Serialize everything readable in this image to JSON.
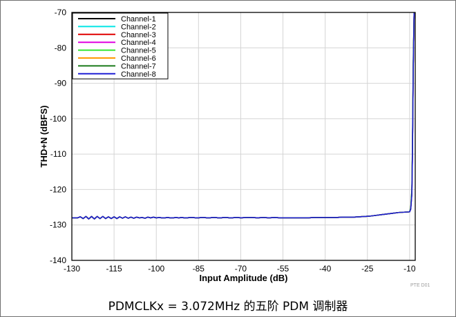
{
  "caption": "PDMCLKx = 3.072MHz 的五阶 PDM 调制器",
  "watermark": "PTE D01",
  "chart_data": {
    "type": "line",
    "xlabel": "Input Amplitude (dB)",
    "ylabel": "THD+N (dBFS)",
    "xlim": [
      -130,
      -8
    ],
    "ylim": [
      -140,
      -70
    ],
    "xticks": [
      -130,
      -115,
      -100,
      -85,
      -70,
      -55,
      -40,
      -25,
      -10
    ],
    "xtick_labels": [
      "-130",
      "-115",
      "-100",
      "-85",
      "-70",
      "-55",
      "-40",
      "-25",
      "-10"
    ],
    "yticks": [
      -140,
      -130,
      -120,
      -110,
      -100,
      -90,
      -80,
      -70
    ],
    "ytick_labels": [
      "-140",
      "-130",
      "-120",
      "-110",
      "-100",
      "-90",
      "-80",
      "-70"
    ],
    "grid": true,
    "legend_position": "top-left",
    "x": [
      -130,
      -128,
      -127,
      -126,
      -125,
      -124,
      -123,
      -122,
      -121,
      -120,
      -119,
      -118,
      -117,
      -116,
      -115,
      -114,
      -113,
      -112,
      -111,
      -110,
      -109,
      -108,
      -107,
      -106,
      -105,
      -104,
      -103,
      -102,
      -101,
      -100,
      -99,
      -98,
      -97,
      -96,
      -95,
      -94,
      -93,
      -92,
      -91,
      -90,
      -89,
      -88,
      -87,
      -86,
      -85,
      -84,
      -83,
      -82,
      -81,
      -80,
      -79,
      -78,
      -77,
      -76,
      -75,
      -74,
      -73,
      -72,
      -71,
      -70,
      -68,
      -66,
      -64,
      -62,
      -60,
      -58,
      -56,
      -54,
      -52,
      -50,
      -48,
      -46,
      -44,
      -42,
      -40,
      -38,
      -36,
      -34,
      -32,
      -30,
      -28,
      -26,
      -24,
      -22,
      -20,
      -18,
      -16,
      -14,
      -12,
      -10,
      -9.6,
      -9.2,
      -9,
      -8.7,
      -8.4
    ],
    "series": [
      {
        "name": "Channel-1",
        "color": "#000000",
        "values": [
          -128,
          -128,
          -127.7,
          -128.2,
          -127.6,
          -128.3,
          -127.6,
          -128.3,
          -127.6,
          -128.2,
          -127.6,
          -128.2,
          -127.7,
          -128.2,
          -127.7,
          -128.2,
          -127.7,
          -128.1,
          -127.7,
          -128.1,
          -127.8,
          -128.1,
          -127.8,
          -128,
          -127.9,
          -128.1,
          -127.8,
          -128,
          -127.8,
          -128,
          -127.9,
          -128,
          -128,
          -127.9,
          -128,
          -128,
          -127.9,
          -128,
          -127.9,
          -128,
          -128,
          -127.9,
          -127.9,
          -128,
          -128,
          -127.9,
          -127.9,
          -128,
          -128,
          -127.9,
          -127.9,
          -128,
          -128,
          -127.9,
          -127.9,
          -128,
          -128,
          -127.9,
          -127.9,
          -128,
          -127.9,
          -127.9,
          -128,
          -127.9,
          -128,
          -127.9,
          -128,
          -128,
          -128,
          -128,
          -128,
          -128,
          -127.9,
          -127.9,
          -127.9,
          -127.9,
          -127.9,
          -127.8,
          -127.8,
          -127.8,
          -127.7,
          -127.6,
          -127.5,
          -127.3,
          -127.1,
          -126.9,
          -126.7,
          -126.5,
          -126.4,
          -126.3,
          -125.5,
          -121,
          -110,
          -85,
          -70
        ]
      },
      {
        "name": "Channel-2",
        "color": "#00e5e5",
        "values": [
          -128,
          -128,
          -127.7,
          -128.2,
          -127.6,
          -128.3,
          -127.6,
          -128.3,
          -127.6,
          -128.2,
          -127.6,
          -128.2,
          -127.7,
          -128.2,
          -127.7,
          -128.2,
          -127.7,
          -128.1,
          -127.7,
          -128.1,
          -127.8,
          -128.1,
          -127.8,
          -128,
          -127.9,
          -128.1,
          -127.8,
          -128,
          -127.8,
          -128,
          -127.9,
          -128,
          -128,
          -127.9,
          -128,
          -128,
          -127.9,
          -128,
          -127.9,
          -128,
          -128,
          -127.9,
          -127.9,
          -128,
          -128,
          -127.9,
          -127.9,
          -128,
          -128,
          -127.9,
          -127.9,
          -128,
          -128,
          -127.9,
          -127.9,
          -128,
          -128,
          -127.9,
          -127.9,
          -128,
          -127.9,
          -127.9,
          -128,
          -127.9,
          -128,
          -127.9,
          -128,
          -128,
          -128,
          -128,
          -128,
          -128,
          -127.9,
          -127.9,
          -127.9,
          -127.9,
          -127.9,
          -127.8,
          -127.8,
          -127.8,
          -127.7,
          -127.6,
          -127.5,
          -127.3,
          -127.1,
          -126.9,
          -126.7,
          -126.5,
          -126.4,
          -126.3,
          -125.5,
          -121,
          -110,
          -85,
          -70
        ]
      },
      {
        "name": "Channel-3",
        "color": "#e00000",
        "values": [
          -128,
          -128,
          -127.7,
          -128.2,
          -127.6,
          -128.3,
          -127.6,
          -128.3,
          -127.6,
          -128.2,
          -127.6,
          -128.2,
          -127.7,
          -128.2,
          -127.7,
          -128.2,
          -127.7,
          -128.1,
          -127.7,
          -128.1,
          -127.8,
          -128.1,
          -127.8,
          -128,
          -127.9,
          -128.1,
          -127.8,
          -128,
          -127.8,
          -128,
          -127.9,
          -128,
          -128,
          -127.9,
          -128,
          -128,
          -127.9,
          -128,
          -127.9,
          -128,
          -128,
          -127.9,
          -127.9,
          -128,
          -128,
          -127.9,
          -127.9,
          -128,
          -128,
          -127.9,
          -127.9,
          -128,
          -128,
          -127.9,
          -127.9,
          -128,
          -128,
          -127.9,
          -127.9,
          -128,
          -127.9,
          -127.9,
          -128,
          -127.9,
          -128,
          -127.9,
          -128,
          -128,
          -128,
          -128,
          -128,
          -128,
          -127.9,
          -127.9,
          -127.9,
          -127.9,
          -127.9,
          -127.8,
          -127.8,
          -127.8,
          -127.7,
          -127.6,
          -127.5,
          -127.3,
          -127.1,
          -126.9,
          -126.7,
          -126.5,
          -126.4,
          -126.3,
          -125.5,
          -121,
          -110,
          -85,
          -70
        ]
      },
      {
        "name": "Channel-4",
        "color": "#e000e0",
        "values": [
          -128,
          -128,
          -127.7,
          -128.2,
          -127.6,
          -128.3,
          -127.6,
          -128.3,
          -127.6,
          -128.2,
          -127.6,
          -128.2,
          -127.7,
          -128.2,
          -127.7,
          -128.2,
          -127.7,
          -128.1,
          -127.7,
          -128.1,
          -127.8,
          -128.1,
          -127.8,
          -128,
          -127.9,
          -128.1,
          -127.8,
          -128,
          -127.8,
          -128,
          -127.9,
          -128,
          -128,
          -127.9,
          -128,
          -128,
          -127.9,
          -128,
          -127.9,
          -128,
          -128,
          -127.9,
          -127.9,
          -128,
          -128,
          -127.9,
          -127.9,
          -128,
          -128,
          -127.9,
          -127.9,
          -128,
          -128,
          -127.9,
          -127.9,
          -128,
          -128,
          -127.9,
          -127.9,
          -128,
          -127.9,
          -127.9,
          -128,
          -127.9,
          -128,
          -127.9,
          -128,
          -128,
          -128,
          -128,
          -128,
          -128,
          -127.9,
          -127.9,
          -127.9,
          -127.9,
          -127.9,
          -127.8,
          -127.8,
          -127.8,
          -127.7,
          -127.6,
          -127.5,
          -127.3,
          -127.1,
          -126.9,
          -126.7,
          -126.5,
          -126.4,
          -126.3,
          -125.5,
          -121,
          -110,
          -85,
          -70
        ]
      },
      {
        "name": "Channel-5",
        "color": "#33e633",
        "values": [
          -128,
          -128,
          -127.7,
          -128.2,
          -127.6,
          -128.3,
          -127.6,
          -128.3,
          -127.6,
          -128.2,
          -127.6,
          -128.2,
          -127.7,
          -128.2,
          -127.7,
          -128.2,
          -127.7,
          -128.1,
          -127.7,
          -128.1,
          -127.8,
          -128.1,
          -127.8,
          -128,
          -127.9,
          -128.1,
          -127.8,
          -128,
          -127.8,
          -128,
          -127.9,
          -128,
          -128,
          -127.9,
          -128,
          -128,
          -127.9,
          -128,
          -127.9,
          -128,
          -128,
          -127.9,
          -127.9,
          -128,
          -128,
          -127.9,
          -127.9,
          -128,
          -128,
          -127.9,
          -127.9,
          -128,
          -128,
          -127.9,
          -127.9,
          -128,
          -128,
          -127.9,
          -127.9,
          -128,
          -127.9,
          -127.9,
          -128,
          -127.9,
          -128,
          -127.9,
          -128,
          -128,
          -128,
          -128,
          -128,
          -128,
          -127.9,
          -127.9,
          -127.9,
          -127.9,
          -127.9,
          -127.8,
          -127.8,
          -127.8,
          -127.7,
          -127.6,
          -127.5,
          -127.3,
          -127.1,
          -126.9,
          -126.7,
          -126.5,
          -126.4,
          -126.3,
          -125.3,
          -120,
          -109,
          -84,
          -70
        ]
      },
      {
        "name": "Channel-6",
        "color": "#ff9900",
        "values": [
          -128,
          -128,
          -127.7,
          -128.2,
          -127.6,
          -128.3,
          -127.6,
          -128.3,
          -127.6,
          -128.2,
          -127.6,
          -128.2,
          -127.7,
          -128.2,
          -127.7,
          -128.2,
          -127.7,
          -128.1,
          -127.7,
          -128.1,
          -127.8,
          -128.1,
          -127.8,
          -128,
          -127.9,
          -128.1,
          -127.8,
          -128,
          -127.8,
          -128,
          -127.9,
          -128,
          -128,
          -127.9,
          -128,
          -128,
          -127.9,
          -128,
          -127.9,
          -128,
          -128,
          -127.9,
          -127.9,
          -128,
          -128,
          -127.9,
          -127.9,
          -128,
          -128,
          -127.9,
          -127.9,
          -128,
          -128,
          -127.9,
          -127.9,
          -128,
          -128,
          -127.9,
          -127.9,
          -128,
          -127.9,
          -127.9,
          -128,
          -127.9,
          -128,
          -127.9,
          -128,
          -128,
          -128,
          -128,
          -128,
          -128,
          -127.9,
          -127.9,
          -127.9,
          -127.9,
          -127.9,
          -127.8,
          -127.8,
          -127.8,
          -127.7,
          -127.6,
          -127.5,
          -127.3,
          -127.1,
          -126.9,
          -126.7,
          -126.5,
          -126.4,
          -126.3,
          -125.5,
          -121,
          -110,
          -85,
          -70
        ]
      },
      {
        "name": "Channel-7",
        "color": "#1a7a1a",
        "values": [
          -128,
          -128,
          -127.7,
          -128.2,
          -127.6,
          -128.3,
          -127.6,
          -128.3,
          -127.6,
          -128.2,
          -127.6,
          -128.2,
          -127.7,
          -128.2,
          -127.7,
          -128.2,
          -127.7,
          -128.1,
          -127.7,
          -128.1,
          -127.8,
          -128.1,
          -127.8,
          -128,
          -127.9,
          -128.1,
          -127.8,
          -128,
          -127.8,
          -128,
          -127.9,
          -128,
          -128,
          -127.9,
          -128,
          -128,
          -127.9,
          -128,
          -127.9,
          -128,
          -128,
          -127.9,
          -127.9,
          -128,
          -128,
          -127.9,
          -127.9,
          -128,
          -128,
          -127.9,
          -127.9,
          -128,
          -128,
          -127.9,
          -127.9,
          -128,
          -128,
          -127.9,
          -127.9,
          -128,
          -127.9,
          -127.9,
          -128,
          -127.9,
          -128,
          -127.9,
          -128,
          -128,
          -128,
          -128,
          -128,
          -128,
          -127.9,
          -127.9,
          -127.9,
          -127.9,
          -127.9,
          -127.8,
          -127.8,
          -127.8,
          -127.7,
          -127.6,
          -127.5,
          -127.3,
          -127.1,
          -126.9,
          -126.7,
          -126.5,
          -126.4,
          -126.3,
          -125.2,
          -120,
          -108,
          -83,
          -70
        ]
      },
      {
        "name": "Channel-8",
        "color": "#1f1fd6",
        "values": [
          -128,
          -128,
          -127.7,
          -128.2,
          -127.6,
          -128.3,
          -127.6,
          -128.3,
          -127.6,
          -128.2,
          -127.6,
          -128.2,
          -127.7,
          -128.2,
          -127.7,
          -128.2,
          -127.7,
          -128.1,
          -127.7,
          -128.1,
          -127.8,
          -128.1,
          -127.8,
          -128,
          -127.9,
          -128.1,
          -127.8,
          -128,
          -127.8,
          -128,
          -127.9,
          -128,
          -128,
          -127.9,
          -128,
          -128,
          -127.9,
          -128,
          -127.9,
          -128,
          -128,
          -127.9,
          -127.9,
          -128,
          -128,
          -127.9,
          -127.9,
          -128,
          -128,
          -127.9,
          -127.9,
          -128,
          -128,
          -127.9,
          -127.9,
          -128,
          -128,
          -127.9,
          -127.9,
          -128,
          -127.9,
          -127.9,
          -128,
          -127.9,
          -128,
          -127.9,
          -128,
          -128,
          -128,
          -128,
          -128,
          -128,
          -127.9,
          -127.9,
          -127.9,
          -127.9,
          -127.9,
          -127.8,
          -127.8,
          -127.8,
          -127.7,
          -127.6,
          -127.5,
          -127.3,
          -127.1,
          -126.9,
          -126.7,
          -126.5,
          -126.4,
          -126.3,
          -125.6,
          -121.5,
          -111,
          -86,
          -70
        ]
      }
    ]
  }
}
